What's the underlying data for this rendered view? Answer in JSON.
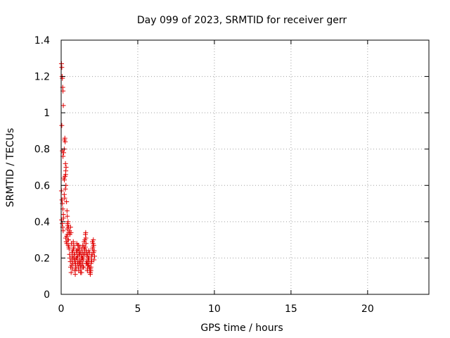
{
  "chart_data": {
    "type": "scatter",
    "title": "Day 099 of 2023, SRMTID for receiver gerr",
    "xlabel": "GPS time / hours",
    "ylabel": "SRMTID / TECUs",
    "xlim": [
      0,
      24
    ],
    "ylim": [
      0,
      1.4
    ],
    "xticks": [
      0,
      5,
      10,
      15,
      20
    ],
    "xtick_labels": [
      "0",
      "5",
      "10",
      "15",
      "20"
    ],
    "yticks": [
      0,
      0.2,
      0.4,
      0.6,
      0.8,
      1,
      1.2,
      1.4
    ],
    "ytick_labels": [
      "0",
      "0.2",
      "0.4",
      "0.6",
      "0.8",
      "1",
      "1.2",
      "1.4"
    ],
    "grid": true,
    "marker": "+",
    "color": "#e00000",
    "series": [
      {
        "name": "SRMTID",
        "x": [
          0.02,
          0.04,
          0.06,
          0.08,
          0.1,
          0.12,
          0.14,
          0.02,
          0.05,
          0.08,
          0.11,
          0.14,
          0.03,
          0.07,
          0.1,
          0.13,
          0.15,
          0.04,
          0.08,
          0.12,
          0.16,
          0.2,
          0.22,
          0.24,
          0.26,
          0.28,
          0.3,
          0.18,
          0.21,
          0.25,
          0.29,
          0.32,
          0.2,
          0.23,
          0.27,
          0.31,
          0.35,
          0.38,
          0.4,
          0.42,
          0.45,
          0.48,
          0.5,
          0.36,
          0.39,
          0.43,
          0.47,
          0.3,
          0.33,
          0.37,
          0.41,
          0.44,
          0.46,
          0.5,
          0.52,
          0.55,
          0.58,
          0.6,
          0.62,
          0.65,
          0.68,
          0.7,
          0.72,
          0.75,
          0.54,
          0.57,
          0.61,
          0.64,
          0.67,
          0.71,
          0.74,
          0.76,
          0.78,
          0.8,
          0.82,
          0.85,
          0.88,
          0.9,
          0.92,
          0.95,
          0.98,
          1.0,
          0.79,
          0.83,
          0.87,
          0.91,
          0.94,
          0.97,
          1.02,
          1.05,
          1.08,
          1.1,
          1.12,
          1.15,
          1.18,
          1.2,
          1.22,
          1.25,
          1.04,
          1.07,
          1.11,
          1.14,
          1.17,
          1.21,
          1.24,
          1.28,
          1.3,
          1.32,
          1.35,
          1.38,
          1.4,
          1.42,
          1.45,
          1.48,
          1.5,
          1.27,
          1.31,
          1.34,
          1.37,
          1.41,
          1.44,
          1.47,
          1.52,
          1.55,
          1.58,
          1.6,
          1.62,
          1.65,
          1.68,
          1.7,
          1.72,
          1.75,
          1.54,
          1.57,
          1.61,
          1.64,
          1.67,
          1.71,
          1.74,
          1.78,
          1.8,
          1.82,
          1.85,
          1.88,
          1.9,
          1.92,
          1.95,
          1.98,
          2.0,
          1.77,
          1.81,
          1.84,
          1.87,
          1.91,
          1.94,
          1.97,
          2.02,
          2.05,
          2.08,
          2.1,
          2.12,
          2.15,
          2.18,
          2.04,
          2.07,
          2.11,
          2.14,
          0.86,
          0.93,
          1.01,
          1.09,
          1.16,
          1.23,
          1.33,
          1.43,
          1.53,
          1.63,
          1.73,
          1.83,
          1.93
        ],
        "y": [
          1.27,
          1.25,
          1.2,
          1.19,
          1.14,
          1.12,
          1.04,
          0.57,
          0.52,
          0.5,
          0.47,
          0.44,
          0.41,
          0.39,
          0.37,
          0.35,
          0.42,
          0.93,
          0.79,
          0.76,
          0.78,
          0.8,
          0.85,
          0.86,
          0.84,
          0.72,
          0.68,
          0.64,
          0.63,
          0.65,
          0.66,
          0.7,
          0.55,
          0.53,
          0.58,
          0.6,
          0.51,
          0.46,
          0.43,
          0.39,
          0.4,
          0.37,
          0.34,
          0.32,
          0.36,
          0.38,
          0.3,
          0.31,
          0.29,
          0.28,
          0.33,
          0.3,
          0.27,
          0.26,
          0.25,
          0.22,
          0.2,
          0.18,
          0.15,
          0.12,
          0.16,
          0.19,
          0.21,
          0.24,
          0.35,
          0.33,
          0.37,
          0.34,
          0.28,
          0.23,
          0.14,
          0.17,
          0.2,
          0.25,
          0.27,
          0.22,
          0.18,
          0.13,
          0.11,
          0.15,
          0.2,
          0.24,
          0.29,
          0.26,
          0.22,
          0.19,
          0.16,
          0.14,
          0.28,
          0.24,
          0.21,
          0.18,
          0.15,
          0.13,
          0.17,
          0.22,
          0.26,
          0.23,
          0.2,
          0.17,
          0.25,
          0.27,
          0.24,
          0.19,
          0.16,
          0.14,
          0.18,
          0.21,
          0.25,
          0.2,
          0.17,
          0.15,
          0.22,
          0.26,
          0.29,
          0.12,
          0.16,
          0.2,
          0.23,
          0.27,
          0.19,
          0.15,
          0.25,
          0.3,
          0.33,
          0.34,
          0.28,
          0.24,
          0.21,
          0.17,
          0.14,
          0.19,
          0.22,
          0.26,
          0.31,
          0.23,
          0.18,
          0.13,
          0.16,
          0.2,
          0.24,
          0.18,
          0.15,
          0.12,
          0.11,
          0.14,
          0.17,
          0.21,
          0.19,
          0.16,
          0.2,
          0.23,
          0.13,
          0.12,
          0.15,
          0.18,
          0.22,
          0.25,
          0.28,
          0.3,
          0.27,
          0.24,
          0.21,
          0.29,
          0.26,
          0.23,
          0.19,
          0.2,
          0.17,
          0.23,
          0.27,
          0.22,
          0.18,
          0.12,
          0.2,
          0.24,
          0.17,
          0.22,
          0.15,
          0.13
        ]
      }
    ]
  }
}
